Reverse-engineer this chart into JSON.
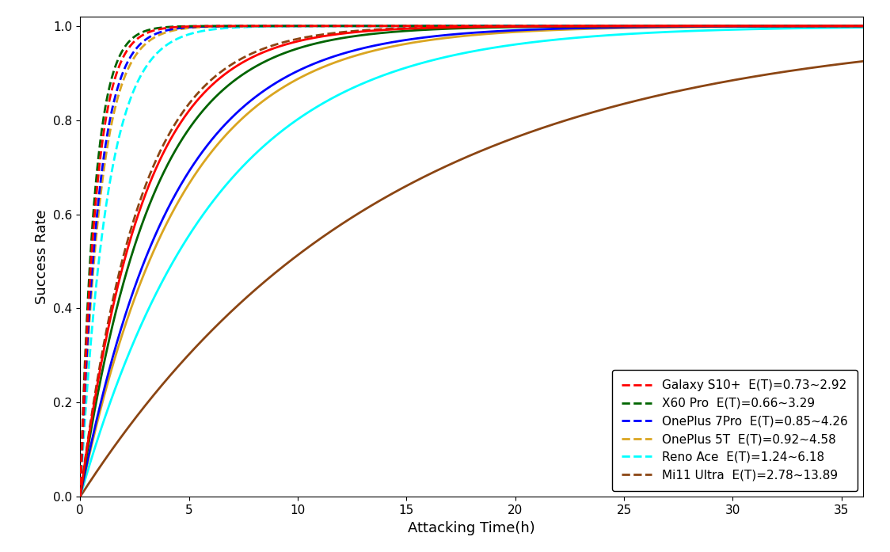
{
  "devices": [
    {
      "name": "Galaxy S10+",
      "label": "Galaxy S10+",
      "et_label": "E(T)=0.73~2.92",
      "lambda_fast": 0.73,
      "lambda_slow": 2.92,
      "color": "red",
      "zorder": 6
    },
    {
      "name": "X60 Pro",
      "label": "X60 Pro",
      "et_label": "E(T)=0.66~3.29",
      "lambda_fast": 0.66,
      "lambda_slow": 3.29,
      "color": "darkgreen",
      "zorder": 5
    },
    {
      "name": "OnePlus 7Pro",
      "label": "OnePlus 7Pro",
      "et_label": "E(T)=0.85~4.26",
      "lambda_fast": 0.85,
      "lambda_slow": 4.26,
      "color": "blue",
      "zorder": 4
    },
    {
      "name": "OnePlus 5T",
      "label": "OnePlus 5T",
      "et_label": "E(T)=0.92~4.58",
      "lambda_fast": 0.92,
      "lambda_slow": 4.58,
      "color": "goldenrod",
      "zorder": 3
    },
    {
      "name": "Reno Ace",
      "label": "Reno Ace",
      "et_label": "E(T)=1.24~6.18",
      "lambda_fast": 1.24,
      "lambda_slow": 6.18,
      "color": "cyan",
      "zorder": 2
    },
    {
      "name": "Mi11 Ultra",
      "label": "Mi11 Ultra",
      "et_label": "E(T)=2.78~13.89",
      "lambda_fast": 2.78,
      "lambda_slow": 13.89,
      "color": "saddlebrown",
      "zorder": 1
    }
  ],
  "xlabel": "Attacking Time(h)",
  "ylabel": "Success Rate",
  "xlim": [
    0,
    36
  ],
  "ylim": [
    0.0,
    1.02
  ],
  "xticks": [
    0,
    5,
    10,
    15,
    20,
    25,
    30,
    35
  ],
  "yticks": [
    0.0,
    0.2,
    0.4,
    0.6,
    0.8,
    1.0
  ],
  "figsize": [
    11.24,
    6.97
  ],
  "dpi": 100,
  "legend_loc": "lower right",
  "legend_fontsize": 11,
  "axis_fontsize": 13,
  "tick_fontsize": 11,
  "linewidth": 2.0
}
